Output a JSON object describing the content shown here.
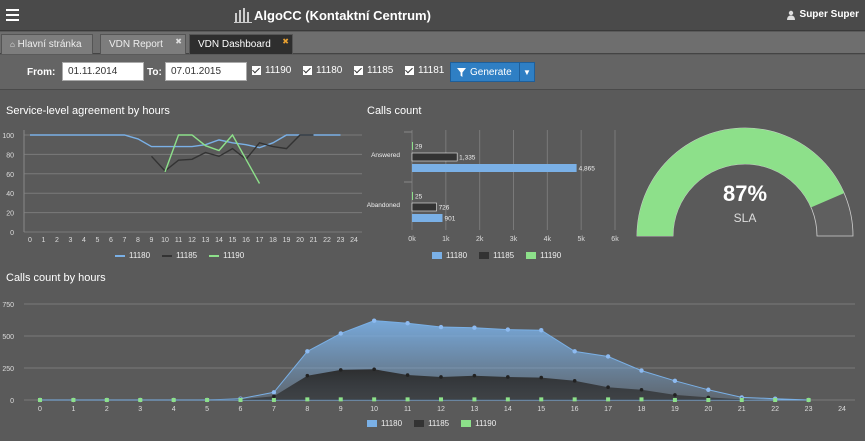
{
  "header": {
    "title": "AlgoCC (Kontaktní Centrum)",
    "user": "Super Super",
    "menu_icon": "hamburger-icon",
    "logo_icon": "bar-chart-logo-icon",
    "user_icon": "user-icon"
  },
  "tabs": [
    {
      "label": "Hlavní stránka",
      "icon": "home-icon",
      "active": false,
      "closable": false
    },
    {
      "label": "VDN Report",
      "active": false,
      "closable": true
    },
    {
      "label": "VDN Dashboard",
      "active": true,
      "closable": true
    }
  ],
  "filters": {
    "from_label": "From:",
    "from_value": "01.11.2014",
    "to_label": "To:",
    "to_value": "07.01.2015",
    "checkboxes": [
      {
        "label": "11190",
        "checked": true
      },
      {
        "label": "11180",
        "checked": true
      },
      {
        "label": "11185",
        "checked": true
      },
      {
        "label": "11181",
        "checked": true
      }
    ],
    "generate_label": "Generate"
  },
  "colors": {
    "s11180": "#7ab0e6",
    "s11185": "#333333",
    "s11190": "#8de08a"
  },
  "chart_data": [
    {
      "type": "line",
      "title": "Service-level agreement by hours",
      "x": [
        0,
        1,
        2,
        3,
        4,
        5,
        6,
        7,
        8,
        9,
        10,
        11,
        12,
        13,
        14,
        15,
        16,
        17,
        18,
        19,
        20,
        21,
        22,
        23,
        24
      ],
      "ylim": [
        0,
        100
      ],
      "yticks": [
        0,
        20,
        40,
        60,
        80,
        100
      ],
      "grid": true,
      "legend": "bottom",
      "series": [
        {
          "name": "11180",
          "values": [
            100,
            100,
            100,
            100,
            100,
            100,
            100,
            100,
            96,
            88,
            88,
            88,
            88,
            90,
            95,
            92,
            90,
            87,
            92,
            100,
            100,
            100,
            100,
            100,
            null
          ]
        },
        {
          "name": "11185",
          "values": [
            null,
            null,
            null,
            null,
            null,
            null,
            null,
            null,
            null,
            78,
            63,
            74,
            75,
            82,
            78,
            86,
            75,
            92,
            88,
            86,
            100,
            100,
            null,
            null,
            null
          ]
        },
        {
          "name": "11190",
          "values": [
            null,
            null,
            null,
            null,
            null,
            null,
            null,
            null,
            null,
            null,
            62,
            100,
            100,
            89,
            84,
            100,
            75,
            50,
            null,
            null,
            null,
            null,
            null,
            null,
            null
          ]
        }
      ]
    },
    {
      "type": "bar",
      "orientation": "horizontal",
      "title": "Calls count",
      "categories": [
        "Answered",
        "Abandoned"
      ],
      "xlim": [
        0,
        6000
      ],
      "xticks": [
        "0k",
        "1k",
        "2k",
        "3k",
        "4k",
        "5k",
        "6k"
      ],
      "grid": true,
      "legend": "bottom",
      "series": [
        {
          "name": "11190",
          "values": [
            29,
            25
          ]
        },
        {
          "name": "11185",
          "values": [
            1335,
            726
          ]
        },
        {
          "name": "11180",
          "values": [
            4865,
            901
          ]
        }
      ],
      "data_labels": [
        [
          "29",
          "1,335",
          "4,865"
        ],
        [
          "25",
          "726",
          "901"
        ]
      ],
      "legend_order": [
        "11180",
        "11185",
        "11190"
      ]
    },
    {
      "type": "gauge",
      "value": 87,
      "value_label": "87%",
      "label": "SLA",
      "min": 0,
      "max": 100
    },
    {
      "type": "area",
      "title": "Calls count by hours",
      "x": [
        0,
        1,
        2,
        3,
        4,
        5,
        6,
        7,
        8,
        9,
        10,
        11,
        12,
        13,
        14,
        15,
        16,
        17,
        18,
        19,
        20,
        21,
        22,
        23
      ],
      "xticks": [
        "0",
        "1",
        "2",
        "3",
        "4",
        "5",
        "6",
        "7",
        "8",
        "9",
        "10",
        "11",
        "12",
        "13",
        "14",
        "15",
        "16",
        "17",
        "18",
        "19",
        "20",
        "21",
        "22",
        "23",
        "24"
      ],
      "ylim": [
        0,
        750
      ],
      "yticks": [
        0,
        250,
        500,
        750
      ],
      "grid": true,
      "legend": "bottom",
      "series": [
        {
          "name": "11180",
          "values": [
            0,
            0,
            0,
            0,
            0,
            0,
            10,
            60,
            380,
            520,
            620,
            600,
            570,
            565,
            550,
            545,
            380,
            340,
            230,
            150,
            80,
            20,
            10,
            0
          ]
        },
        {
          "name": "11185",
          "values": [
            0,
            0,
            0,
            0,
            0,
            0,
            5,
            30,
            190,
            235,
            240,
            195,
            180,
            190,
            180,
            175,
            150,
            100,
            80,
            40,
            20,
            5,
            0,
            0
          ]
        },
        {
          "name": "11190",
          "values": [
            0,
            0,
            0,
            0,
            0,
            0,
            0,
            0,
            5,
            5,
            5,
            5,
            5,
            5,
            5,
            5,
            5,
            5,
            5,
            0,
            0,
            0,
            0,
            0
          ]
        }
      ]
    }
  ]
}
